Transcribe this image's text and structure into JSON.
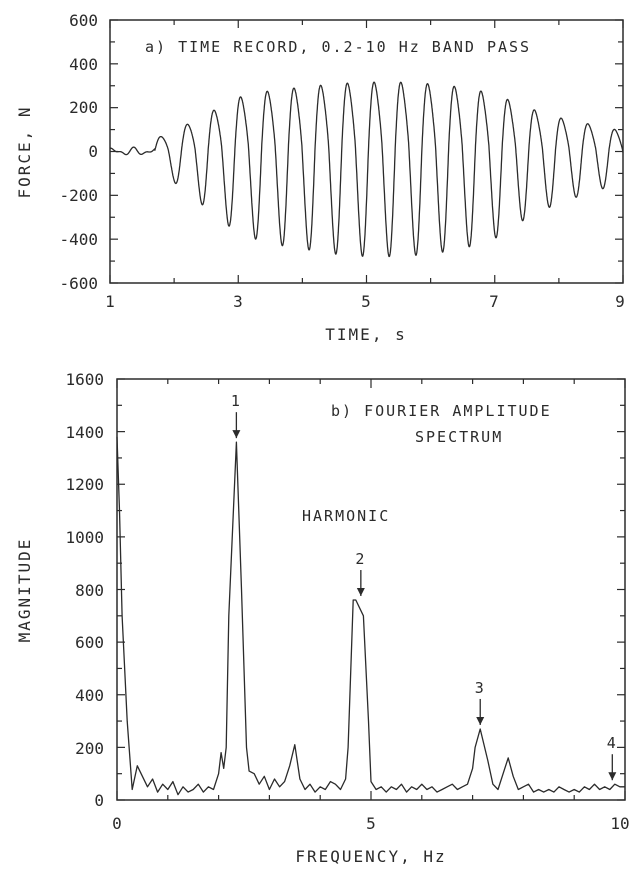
{
  "chart_data": [
    {
      "type": "line",
      "annotation": "a) TIME RECORD, 0.2-10 Hz BAND PASS",
      "xlabel": "TIME, s",
      "ylabel": "FORCE, N",
      "xlim": [
        1,
        9
      ],
      "ylim": [
        -600,
        600
      ],
      "xticks": [
        "1",
        "3",
        "5",
        "7",
        "9"
      ],
      "yticks": [
        "600",
        "400",
        "200",
        "0",
        "-200",
        "-400",
        "-600"
      ],
      "grid": false,
      "signal": {
        "start_time": 1.7,
        "frequency_hz": 2.4,
        "envelope": {
          "t": [
            1.0,
            1.6,
            2.0,
            2.5,
            3.0,
            3.5,
            4.0,
            4.5,
            5.0,
            5.5,
            6.0,
            6.5,
            7.0,
            7.5,
            8.0,
            8.5,
            9.0
          ],
          "amplitude": [
            20,
            60,
            120,
            220,
            320,
            360,
            380,
            400,
            410,
            410,
            400,
            380,
            340,
            260,
            200,
            160,
            120
          ]
        },
        "peak_values": [
          {
            "t": 5.0,
            "y": 360
          },
          {
            "t": 6.55,
            "y": 385
          },
          {
            "t": 5.25,
            "y": -460
          },
          {
            "t": 6.05,
            "y": -470
          }
        ]
      }
    },
    {
      "type": "line",
      "annotation": "b) FOURIER AMPLITUDE\nSPECTRUM",
      "annotation_lines": [
        "b) FOURIER AMPLITUDE",
        "SPECTRUM"
      ],
      "xlabel": "FREQUENCY, Hz",
      "ylabel": "MAGNITUDE",
      "xlim": [
        0,
        10
      ],
      "ylim": [
        0,
        1600
      ],
      "xticks": [
        "0",
        "5",
        "10"
      ],
      "yticks": [
        "1600",
        "1400",
        "1200",
        "1000",
        "800",
        "600",
        "400",
        "200",
        "0"
      ],
      "grid": false,
      "harmonic_label": "HARMONIC",
      "harmonics": [
        {
          "label": "1",
          "x": 2.35,
          "y": 1360
        },
        {
          "label": "2",
          "x": 4.8,
          "y": 760
        },
        {
          "label": "3",
          "x": 7.15,
          "y": 270
        },
        {
          "label": "4",
          "x": 9.75,
          "y": 60
        }
      ],
      "spectrum": {
        "x": [
          0.0,
          0.05,
          0.1,
          0.2,
          0.3,
          0.4,
          0.5,
          0.6,
          0.7,
          0.8,
          0.9,
          1.0,
          1.1,
          1.2,
          1.3,
          1.4,
          1.5,
          1.6,
          1.7,
          1.8,
          1.9,
          2.0,
          2.05,
          2.1,
          2.15,
          2.2,
          2.35,
          2.45,
          2.55,
          2.6,
          2.7,
          2.8,
          2.9,
          3.0,
          3.1,
          3.2,
          3.3,
          3.4,
          3.5,
          3.6,
          3.7,
          3.8,
          3.9,
          4.0,
          4.1,
          4.2,
          4.3,
          4.4,
          4.5,
          4.55,
          4.65,
          4.7,
          4.85,
          4.95,
          5.0,
          5.1,
          5.2,
          5.3,
          5.4,
          5.5,
          5.6,
          5.7,
          5.8,
          5.9,
          6.0,
          6.1,
          6.2,
          6.3,
          6.4,
          6.5,
          6.6,
          6.7,
          6.8,
          6.9,
          7.0,
          7.05,
          7.15,
          7.3,
          7.4,
          7.5,
          7.6,
          7.7,
          7.8,
          7.9,
          8.0,
          8.1,
          8.2,
          8.3,
          8.4,
          8.5,
          8.6,
          8.7,
          8.8,
          8.9,
          9.0,
          9.1,
          9.2,
          9.3,
          9.4,
          9.5,
          9.6,
          9.7,
          9.8,
          9.9,
          10.0
        ],
        "y": [
          1380,
          1100,
          700,
          300,
          40,
          130,
          90,
          50,
          80,
          30,
          60,
          40,
          70,
          20,
          50,
          30,
          40,
          60,
          30,
          50,
          40,
          100,
          180,
          120,
          200,
          700,
          1360,
          800,
          200,
          110,
          100,
          60,
          90,
          40,
          80,
          50,
          70,
          130,
          210,
          80,
          40,
          60,
          30,
          50,
          40,
          70,
          60,
          40,
          80,
          200,
          760,
          760,
          700,
          300,
          70,
          40,
          50,
          30,
          50,
          40,
          60,
          30,
          50,
          40,
          60,
          40,
          50,
          30,
          40,
          50,
          60,
          40,
          50,
          60,
          120,
          200,
          270,
          150,
          60,
          40,
          100,
          160,
          90,
          40,
          50,
          60,
          30,
          40,
          30,
          40,
          30,
          50,
          40,
          30,
          40,
          30,
          50,
          40,
          60,
          40,
          50,
          40,
          60,
          50,
          50
        ]
      }
    }
  ]
}
